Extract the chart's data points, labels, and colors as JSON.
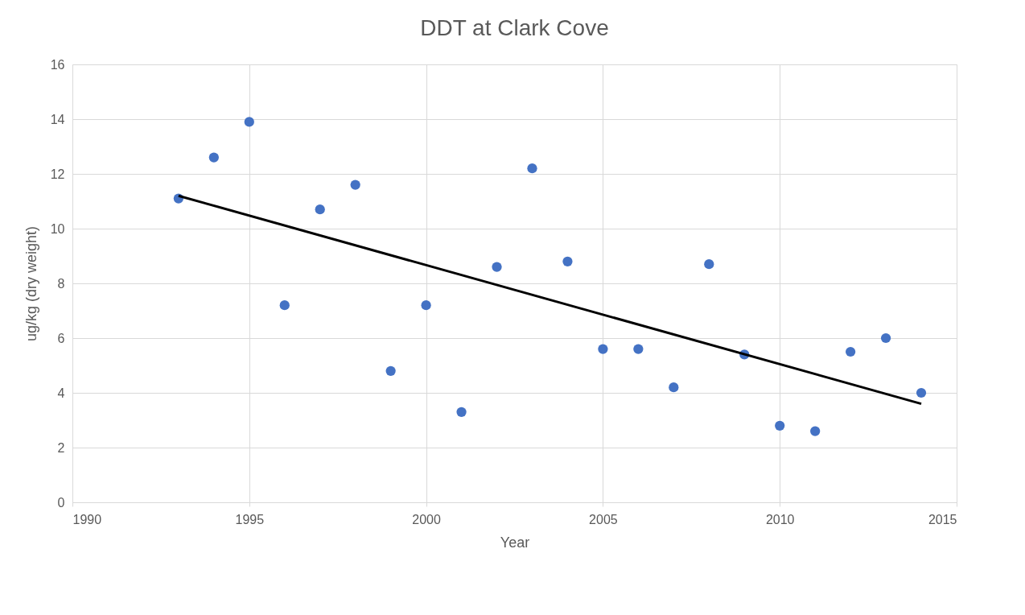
{
  "chart_data": {
    "type": "scatter",
    "title": "DDT at Clark Cove",
    "xlabel": "Year",
    "ylabel": "ug/kg (dry weight)",
    "x": [
      1993,
      1994,
      1995,
      1996,
      1997,
      1998,
      1999,
      2000,
      2001,
      2002,
      2003,
      2004,
      2005,
      2006,
      2007,
      2008,
      2009,
      2010,
      2011,
      2012,
      2013,
      2014
    ],
    "series": [
      {
        "type": "scatter",
        "color": "#4472c4",
        "marker": "circle",
        "values": [
          11.1,
          12.6,
          13.9,
          7.2,
          10.7,
          11.6,
          4.8,
          7.2,
          3.3,
          8.6,
          12.2,
          8.8,
          5.6,
          5.6,
          4.2,
          8.7,
          5.4,
          2.8,
          2.6,
          5.5,
          6.0,
          4.0
        ]
      },
      {
        "type": "line",
        "color": "#000000",
        "marker": "none",
        "line_style": "solid",
        "x": [
          1993,
          2014
        ],
        "values": [
          11.2,
          3.6
        ]
      }
    ],
    "xlim": [
      1990,
      2015
    ],
    "xticks": [
      1990,
      1995,
      2000,
      2005,
      2010,
      2015
    ],
    "ylim": [
      0,
      16
    ],
    "yticks": [
      0,
      2,
      4,
      6,
      8,
      10,
      12,
      14,
      16
    ],
    "grid": true
  }
}
